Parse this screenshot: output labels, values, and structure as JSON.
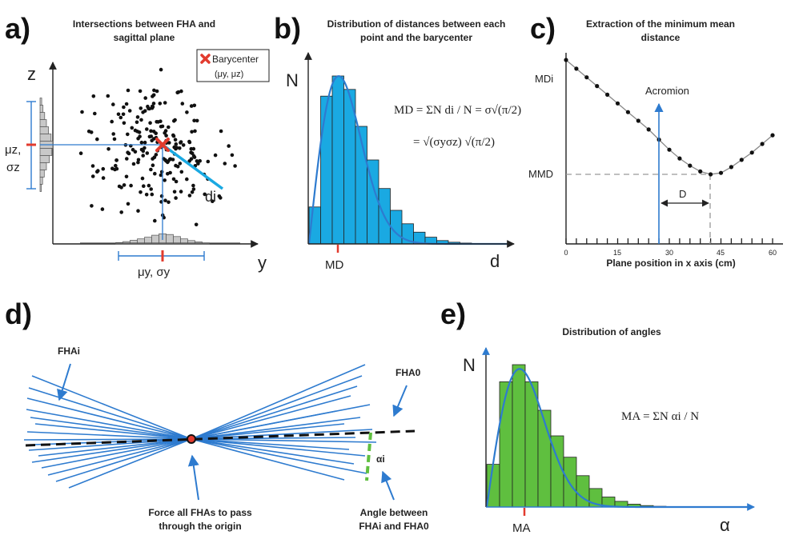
{
  "colors": {
    "blue": "#2e7bcf",
    "cyan": "#1aa9e2",
    "green": "#5fbf3f",
    "red": "#e23b2e",
    "gray": "#c8c8c8",
    "dark": "#222222"
  },
  "panel_a": {
    "letter": "a)",
    "title_line1": "Intersections between FHA and",
    "title_line2": "sagittal plane",
    "z_axis": "z",
    "y_axis": "y",
    "legend_label": "Barycenter",
    "legend_sub": "(μy, μz)",
    "mu_z": "μz,",
    "sigma_z": "σz",
    "mu_y": "μy, σy",
    "di": "di"
  },
  "panel_b": {
    "letter": "b)",
    "title_line1": "Distribution of distances between each",
    "title_line2": "point and the barycenter",
    "n_axis": "N",
    "d_axis": "d",
    "md_tick": "MD",
    "formula_1": "MD = ΣN di / N = σ√(π/2)",
    "formula_2": "= √(σyσz) √(π/2)"
  },
  "panel_c": {
    "letter": "c)",
    "title_line1": "Extraction of the minimum mean",
    "title_line2": "distance",
    "md_i": "MDi",
    "mmd": "MMD",
    "acromion": "Acromion",
    "d_label": "D",
    "x_label": "Plane position in x axis (cm)",
    "ticks": [
      "0",
      "15",
      "30",
      "45",
      "60"
    ]
  },
  "panel_d": {
    "letter": "d)",
    "fha_i": "FHAi",
    "fha_0": "FHA0",
    "alpha_i": "αi",
    "origin_line1": "Force all FHAs to pass",
    "origin_line2": "through the origin",
    "angle_line1": "Angle between",
    "angle_line2": "FHAi and FHA0"
  },
  "panel_e": {
    "letter": "e)",
    "title": "Distribution of angles",
    "n_axis": "N",
    "alpha_axis": "α",
    "ma_tick": "MA",
    "formula": "MA = ΣN αi / N"
  },
  "chart_data": [
    {
      "type": "bar",
      "panel": "b",
      "xlabel": "d",
      "ylabel": "N",
      "values": [
        22,
        88,
        100,
        92,
        70,
        50,
        33,
        20,
        12,
        7,
        4,
        2,
        1,
        0.5
      ],
      "x_mark": "MD"
    },
    {
      "type": "line",
      "panel": "c",
      "xlabel": "Plane position in x axis (cm)",
      "x_ticks": [
        0,
        15,
        30,
        45,
        60
      ],
      "x": [
        0,
        3,
        6,
        9,
        12,
        15,
        18,
        21,
        24,
        27,
        30,
        33,
        36,
        39,
        42,
        45,
        48,
        51,
        54,
        57,
        60
      ],
      "y": [
        100,
        94,
        88,
        82,
        76,
        70,
        64,
        58,
        52,
        45,
        38,
        32,
        27,
        23,
        21,
        22,
        26,
        31,
        36,
        42,
        48
      ],
      "annotations": [
        "MDi",
        "MMD",
        "Acromion",
        "D"
      ]
    },
    {
      "type": "bar",
      "panel": "e",
      "xlabel": "α",
      "ylabel": "N",
      "values": [
        30,
        88,
        100,
        88,
        68,
        50,
        35,
        22,
        13,
        7,
        4,
        2,
        1,
        0.5
      ],
      "x_mark": "MA"
    }
  ]
}
